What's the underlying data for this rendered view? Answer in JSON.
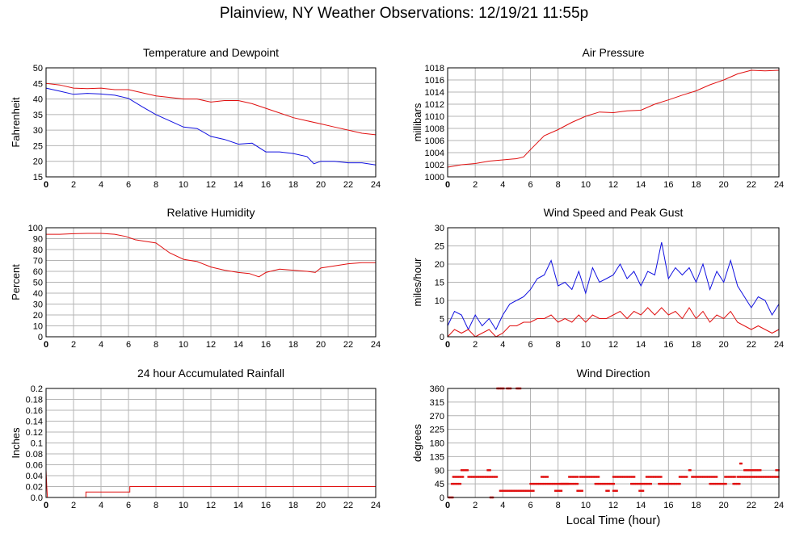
{
  "page": {
    "title": "Plainview, NY Weather Observations: 12/19/21 11:55p",
    "xlabel": "Local Time (hour)"
  },
  "colors": {
    "red": "#e01010",
    "blue": "#1010e0",
    "grid": "#b4b4b4",
    "frame": "#000000"
  },
  "chart_data": [
    {
      "id": "temp",
      "type": "line",
      "title": "Temperature and Dewpoint",
      "ylabel": "Fahrenheit",
      "xlim": [
        0,
        24
      ],
      "xticks": [
        0,
        2,
        4,
        6,
        8,
        10,
        12,
        14,
        16,
        18,
        20,
        22,
        24
      ],
      "ylim": [
        15,
        50
      ],
      "yticks": [
        15,
        20,
        25,
        30,
        35,
        40,
        45,
        50
      ],
      "grid": true,
      "series": [
        {
          "color": "red",
          "x": [
            0,
            1,
            2,
            3,
            4,
            5,
            6,
            7,
            8,
            9,
            10,
            11,
            12,
            13,
            14,
            15,
            16,
            17,
            18,
            19,
            20,
            21,
            22,
            23,
            24
          ],
          "y": [
            45,
            44.5,
            43.5,
            43.3,
            43.5,
            43,
            43,
            42,
            41,
            40.5,
            40,
            40,
            39,
            39.5,
            39.5,
            38.5,
            37,
            35.5,
            34,
            33,
            32,
            31,
            30,
            29,
            28.5
          ]
        },
        {
          "color": "blue",
          "x": [
            0,
            1,
            2,
            3,
            4,
            5,
            6,
            7,
            8,
            9,
            10,
            11,
            12,
            13,
            14,
            15,
            16,
            17,
            18,
            19,
            19.5,
            20,
            21,
            22,
            23,
            24
          ],
          "y": [
            43.5,
            42.5,
            41.5,
            41.8,
            41.6,
            41.2,
            40.2,
            37.5,
            35,
            33,
            31,
            30.5,
            28,
            27,
            25.5,
            25.8,
            23,
            23,
            22.5,
            21.5,
            19.2,
            20,
            20,
            19.5,
            19.5,
            18.8
          ]
        }
      ]
    },
    {
      "id": "pressure",
      "type": "line",
      "title": "Air Pressure",
      "ylabel": "millibars",
      "xlim": [
        0,
        24
      ],
      "xticks": [
        0,
        2,
        4,
        6,
        8,
        10,
        12,
        14,
        16,
        18,
        20,
        22,
        24
      ],
      "ylim": [
        1000,
        1018
      ],
      "yticks": [
        1000,
        1002,
        1004,
        1006,
        1008,
        1010,
        1012,
        1014,
        1016,
        1018
      ],
      "grid": true,
      "series": [
        {
          "color": "red",
          "x": [
            0,
            1,
            2,
            3,
            4,
            5,
            5.5,
            6,
            7,
            8,
            9,
            10,
            11,
            12,
            13,
            14,
            15,
            16,
            17,
            18,
            19,
            20,
            21,
            22,
            23,
            24
          ],
          "y": [
            1001.6,
            1002,
            1002.2,
            1002.6,
            1002.8,
            1003,
            1003.3,
            1004.5,
            1006.8,
            1007.8,
            1009,
            1010,
            1010.7,
            1010.6,
            1010.9,
            1011,
            1012,
            1012.7,
            1013.5,
            1014.2,
            1015.2,
            1016,
            1017,
            1017.6,
            1017.5,
            1017.6
          ]
        }
      ]
    },
    {
      "id": "humidity",
      "type": "line",
      "title": "Relative Humidity",
      "ylabel": "Percent",
      "xlim": [
        0,
        24
      ],
      "xticks": [
        0,
        2,
        4,
        6,
        8,
        10,
        12,
        14,
        16,
        18,
        20,
        22,
        24
      ],
      "ylim": [
        0,
        100
      ],
      "yticks": [
        0,
        10,
        20,
        30,
        40,
        50,
        60,
        70,
        80,
        90,
        100
      ],
      "grid": true,
      "series": [
        {
          "color": "red",
          "x": [
            0,
            1,
            2,
            3,
            4,
            5,
            5.8,
            6.5,
            7,
            8,
            9,
            10,
            11,
            12,
            13,
            14,
            14.8,
            15.5,
            16,
            17,
            18,
            19,
            19.6,
            20,
            21,
            22,
            23,
            24
          ],
          "y": [
            94,
            94,
            94.5,
            94.8,
            94.8,
            94,
            92,
            89,
            88,
            86,
            77,
            71,
            69,
            64,
            61,
            59,
            58,
            55,
            59,
            62,
            61,
            60,
            59,
            63,
            65,
            67,
            68,
            68
          ]
        }
      ]
    },
    {
      "id": "wind",
      "type": "line",
      "title": "Wind Speed and Peak Gust",
      "ylabel": "miles/hour",
      "xlim": [
        0,
        24
      ],
      "xticks": [
        0,
        2,
        4,
        6,
        8,
        10,
        12,
        14,
        16,
        18,
        20,
        22,
        24
      ],
      "ylim": [
        0,
        30
      ],
      "yticks": [
        0,
        5,
        10,
        15,
        20,
        25,
        30
      ],
      "grid": true,
      "series": [
        {
          "color": "blue",
          "x": [
            0,
            0.5,
            1,
            1.5,
            2,
            2.5,
            3,
            3.5,
            4,
            4.5,
            5,
            5.5,
            6,
            6.5,
            7,
            7.5,
            8,
            8.5,
            9,
            9.5,
            10,
            10.5,
            11,
            11.5,
            12,
            12.5,
            13,
            13.5,
            14,
            14.5,
            15,
            15.5,
            16,
            16.5,
            17,
            17.5,
            18,
            18.5,
            19,
            19.5,
            20,
            20.5,
            21,
            21.5,
            22,
            22.5,
            23,
            23.5,
            24
          ],
          "y": [
            3,
            7,
            6,
            2,
            6,
            3,
            5,
            2,
            6,
            9,
            10,
            11,
            13,
            16,
            17,
            21,
            14,
            15,
            13,
            18,
            12,
            19,
            15,
            16,
            17,
            20,
            16,
            18,
            14,
            18,
            17,
            26,
            16,
            19,
            17,
            19,
            15,
            20,
            13,
            18,
            15,
            21,
            14,
            11,
            8,
            11,
            10,
            6,
            9
          ]
        },
        {
          "color": "red",
          "x": [
            0,
            0.5,
            1,
            1.5,
            2,
            2.5,
            3,
            3.5,
            4,
            4.5,
            5,
            5.5,
            6,
            6.5,
            7,
            7.5,
            8,
            8.5,
            9,
            9.5,
            10,
            10.5,
            11,
            11.5,
            12,
            12.5,
            13,
            13.5,
            14,
            14.5,
            15,
            15.5,
            16,
            16.5,
            17,
            17.5,
            18,
            18.5,
            19,
            19.5,
            20,
            20.5,
            21,
            21.5,
            22,
            22.5,
            23,
            23.5,
            24
          ],
          "y": [
            0,
            2,
            1,
            2,
            0,
            1,
            2,
            0,
            1,
            3,
            3,
            4,
            4,
            5,
            5,
            6,
            4,
            5,
            4,
            6,
            4,
            6,
            5,
            5,
            6,
            7,
            5,
            7,
            6,
            8,
            6,
            8,
            6,
            7,
            5,
            8,
            5,
            7,
            4,
            6,
            5,
            7,
            4,
            3,
            2,
            3,
            2,
            1,
            2
          ]
        }
      ]
    },
    {
      "id": "rain",
      "type": "line",
      "title": "24 hour Accumulated Rainfall",
      "ylabel": "Inches",
      "xlim": [
        0,
        24
      ],
      "xticks": [
        0,
        2,
        4,
        6,
        8,
        10,
        12,
        14,
        16,
        18,
        20,
        22,
        24
      ],
      "ylim": [
        0,
        0.2
      ],
      "yticks": [
        0,
        0.02,
        0.04,
        0.06,
        0.08,
        0.1,
        0.12,
        0.14,
        0.16,
        0.18,
        0.2
      ],
      "ytick_labels": [
        "0.0",
        "0.02",
        "0.04",
        "0.06",
        "0.08",
        "0.1",
        "0.12",
        "0.14",
        "0.16",
        "0.18",
        "0.2"
      ],
      "grid": true,
      "series": [
        {
          "color": "red",
          "x": [
            0,
            0.05,
            0.1,
            2.9,
            2.9,
            6.1,
            6.1,
            24
          ],
          "y": [
            0.05,
            0.02,
            0,
            0,
            0.01,
            0.01,
            0.02,
            0.02
          ]
        }
      ]
    },
    {
      "id": "direction",
      "type": "scatter",
      "title": "Wind Direction",
      "ylabel": "degrees",
      "xlim": [
        0,
        24
      ],
      "xticks": [
        0,
        2,
        4,
        6,
        8,
        10,
        12,
        14,
        16,
        18,
        20,
        22,
        24
      ],
      "ylim": [
        0,
        360
      ],
      "yticks": [
        0,
        45,
        90,
        135,
        180,
        225,
        270,
        315,
        360
      ],
      "grid": true,
      "series": [
        {
          "color": "red",
          "mode": "points",
          "segments": [
            [
              0.1,
              0.4,
              0
            ],
            [
              0.3,
              1.0,
              45
            ],
            [
              0.4,
              1.2,
              68
            ],
            [
              1.0,
              1.5,
              90
            ],
            [
              1.5,
              3.6,
              68
            ],
            [
              2.9,
              3.1,
              90
            ],
            [
              3.1,
              3.3,
              0
            ],
            [
              3.6,
              4.1,
              360
            ],
            [
              4.3,
              4.6,
              360
            ],
            [
              5.0,
              5.3,
              360
            ],
            [
              3.8,
              6.3,
              22
            ],
            [
              6.0,
              9.5,
              45
            ],
            [
              6.8,
              7.3,
              68
            ],
            [
              7.8,
              8.3,
              22
            ],
            [
              8.2,
              8.8,
              45
            ],
            [
              8.8,
              9.5,
              68
            ],
            [
              9.4,
              9.8,
              22
            ],
            [
              9.6,
              11.0,
              68
            ],
            [
              10.7,
              12.1,
              45
            ],
            [
              11.5,
              11.7,
              22
            ],
            [
              12.0,
              12.3,
              22
            ],
            [
              12.0,
              13.6,
              68
            ],
            [
              13.3,
              14.8,
              45
            ],
            [
              13.9,
              14.2,
              22
            ],
            [
              14.4,
              15.5,
              68
            ],
            [
              15.3,
              16.9,
              45
            ],
            [
              16.8,
              17.4,
              68
            ],
            [
              17.5,
              17.6,
              90
            ],
            [
              17.7,
              19.5,
              68
            ],
            [
              19.0,
              20.2,
              45
            ],
            [
              20.1,
              20.9,
              68
            ],
            [
              20.7,
              21.2,
              45
            ],
            [
              21.2,
              21.3,
              112
            ],
            [
              21.5,
              22.7,
              90
            ],
            [
              21.0,
              24.0,
              68
            ],
            [
              23.8,
              24.0,
              90
            ]
          ]
        }
      ]
    }
  ]
}
